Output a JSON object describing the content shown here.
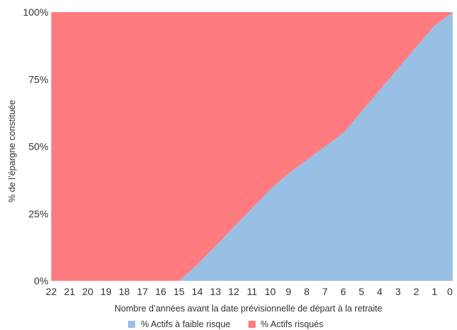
{
  "chart_data": {
    "type": "area",
    "stacked": true,
    "normalized": true,
    "xlabel": "Nombre d’années avant la date prévisionnelle de départ à la retraite",
    "ylabel": "% de l’épargne constituée",
    "x": [
      22,
      21,
      20,
      19,
      18,
      17,
      16,
      15,
      14,
      13,
      12,
      11,
      10,
      9,
      8,
      7,
      6,
      5,
      4,
      3,
      2,
      1,
      0
    ],
    "x_ticks": [
      22,
      21,
      20,
      19,
      18,
      17,
      16,
      15,
      14,
      13,
      12,
      11,
      10,
      9,
      8,
      7,
      6,
      5,
      4,
      3,
      2,
      1,
      0
    ],
    "x_reversed": true,
    "y_ticks": [
      0,
      25,
      50,
      75,
      100
    ],
    "y_tick_labels": [
      "0%",
      "25%",
      "50%",
      "75%",
      "100%"
    ],
    "ylim": [
      0,
      100
    ],
    "series": [
      {
        "name": "% Actifs à faible risque",
        "color": "#98BFE4",
        "values": [
          0,
          0,
          0,
          0,
          0,
          0,
          0,
          0,
          6,
          13,
          20,
          27,
          34,
          40,
          45,
          50,
          55,
          63,
          71,
          79,
          87,
          95,
          100
        ]
      },
      {
        "name": "% Actifs risqués",
        "color": "#FF7B80",
        "values": [
          100,
          100,
          100,
          100,
          100,
          100,
          100,
          100,
          94,
          87,
          80,
          73,
          66,
          60,
          55,
          50,
          45,
          37,
          29,
          21,
          13,
          5,
          0
        ]
      }
    ],
    "grid": false,
    "legend_position": "bottom-center"
  }
}
